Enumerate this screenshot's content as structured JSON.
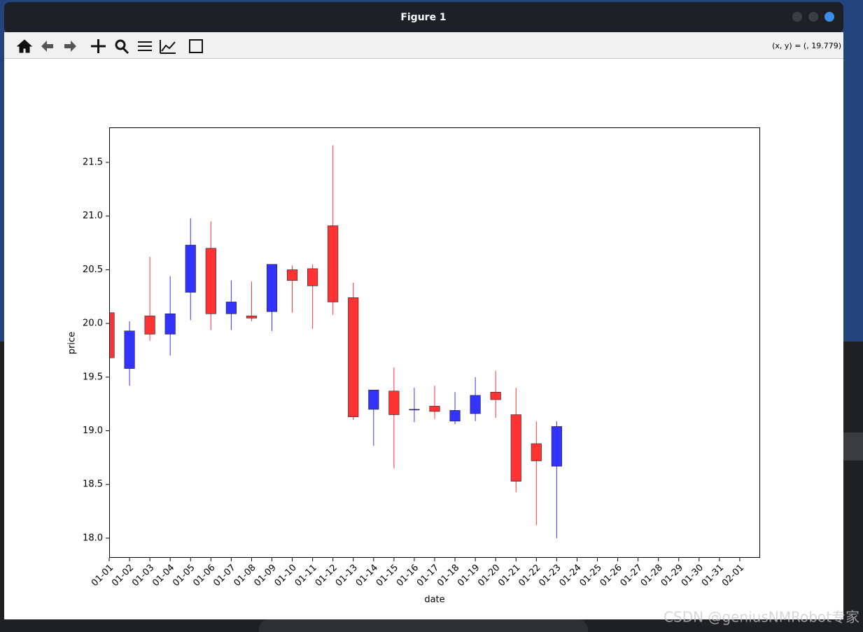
{
  "window": {
    "title": "Figure 1",
    "coordinates": "(x, y) = (, 19.779)"
  },
  "watermark": "CSDN @geniusNMRobot专家",
  "chart_data": {
    "type": "candlestick",
    "x_label": "date",
    "y_label": "price",
    "x": [
      "01-01",
      "01-02",
      "01-03",
      "01-04",
      "01-05",
      "01-06",
      "01-07",
      "01-08",
      "01-09",
      "01-10",
      "01-11",
      "01-12",
      "01-13",
      "01-14",
      "01-15",
      "01-16",
      "01-17",
      "01-18",
      "01-19",
      "01-20",
      "01-21",
      "01-22",
      "01-23"
    ],
    "open": [
      19.68,
      19.93,
      19.9,
      20.09,
      20.73,
      20.09,
      20.2,
      20.05,
      20.55,
      20.4,
      20.35,
      20.2,
      19.13,
      19.38,
      19.15,
      19.2,
      19.18,
      19.19,
      19.33,
      19.29,
      18.53,
      18.72,
      19.04
    ],
    "high": [
      20.1,
      20.02,
      20.62,
      20.44,
      20.98,
      20.95,
      20.4,
      20.39,
      20.55,
      20.54,
      20.55,
      21.66,
      20.38,
      19.38,
      19.59,
      19.4,
      19.42,
      19.36,
      19.5,
      19.56,
      19.4,
      19.09,
      19.09
    ],
    "low": [
      19.68,
      19.42,
      19.84,
      19.7,
      20.03,
      19.94,
      19.94,
      20.02,
      19.93,
      20.1,
      19.95,
      20.08,
      19.1,
      18.86,
      18.65,
      19.08,
      19.11,
      19.06,
      19.09,
      19.12,
      18.43,
      18.12,
      18.0
    ],
    "close": [
      20.1,
      19.58,
      20.07,
      19.9,
      20.29,
      20.7,
      20.09,
      20.07,
      20.11,
      20.5,
      20.51,
      20.91,
      20.24,
      19.2,
      19.37,
      19.2,
      19.23,
      19.09,
      19.16,
      19.36,
      19.15,
      18.88,
      18.67
    ],
    "up_color": "#ff3333",
    "down_color": "#3333ff",
    "xticks": [
      "01-01",
      "01-02",
      "01-03",
      "01-04",
      "01-05",
      "01-06",
      "01-07",
      "01-08",
      "01-09",
      "01-10",
      "01-11",
      "01-12",
      "01-13",
      "01-14",
      "01-15",
      "01-16",
      "01-17",
      "01-18",
      "01-19",
      "01-20",
      "01-21",
      "01-22",
      "01-23",
      "01-24",
      "01-25",
      "01-26",
      "01-27",
      "01-28",
      "01-29",
      "01-30",
      "01-31",
      "02-01"
    ],
    "ylim": [
      17.817,
      21.826
    ],
    "yticks": [
      {
        "value": 18,
        "label": "18.0"
      },
      18.5,
      {
        "value": 19,
        "label": "19.0"
      },
      19.5,
      {
        "value": 20,
        "label": "20.0"
      },
      20.5,
      {
        "value": 21,
        "label": "21.0"
      },
      21.5
    ]
  }
}
